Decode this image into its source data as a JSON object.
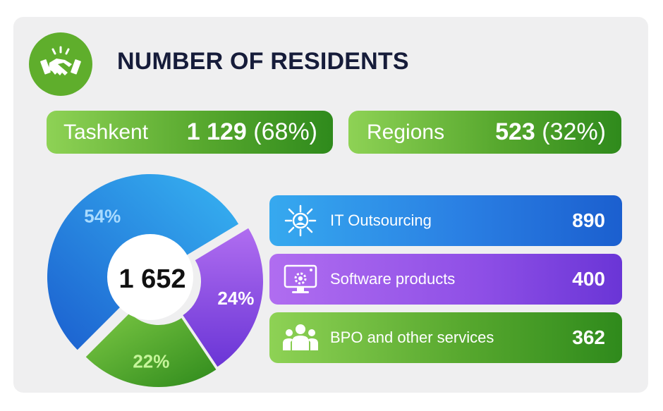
{
  "header": {
    "title": "NUMBER OF RESIDENTS",
    "icon": "handshake-icon"
  },
  "summary": {
    "tashkent": {
      "label": "Tashkent",
      "value": "1 129",
      "share": "(68%)"
    },
    "regions": {
      "label": "Regions",
      "value": "523",
      "share": "(32%)"
    }
  },
  "colors": {
    "it": "#2a7fe3",
    "software": "#8e4fe6",
    "bpo": "#57a82e",
    "it_pct_text": "#a9dbff",
    "green_pct_text": "#c6f59a"
  },
  "chart_data": {
    "type": "pie",
    "title": "",
    "total": "1 652",
    "categories": [
      "IT Outsourcing",
      "Software products",
      "BPO and other services"
    ],
    "values": [
      890,
      400,
      362
    ],
    "percent_labels": [
      "54%",
      "24%",
      "22%"
    ]
  },
  "legend": [
    {
      "name": "IT Outsourcing",
      "value": "890",
      "icon": "outsourcing-network-icon"
    },
    {
      "name": "Software products",
      "value": "400",
      "icon": "monitor-gear-icon"
    },
    {
      "name": "BPO and other services",
      "value": "362",
      "icon": "people-group-icon"
    }
  ]
}
